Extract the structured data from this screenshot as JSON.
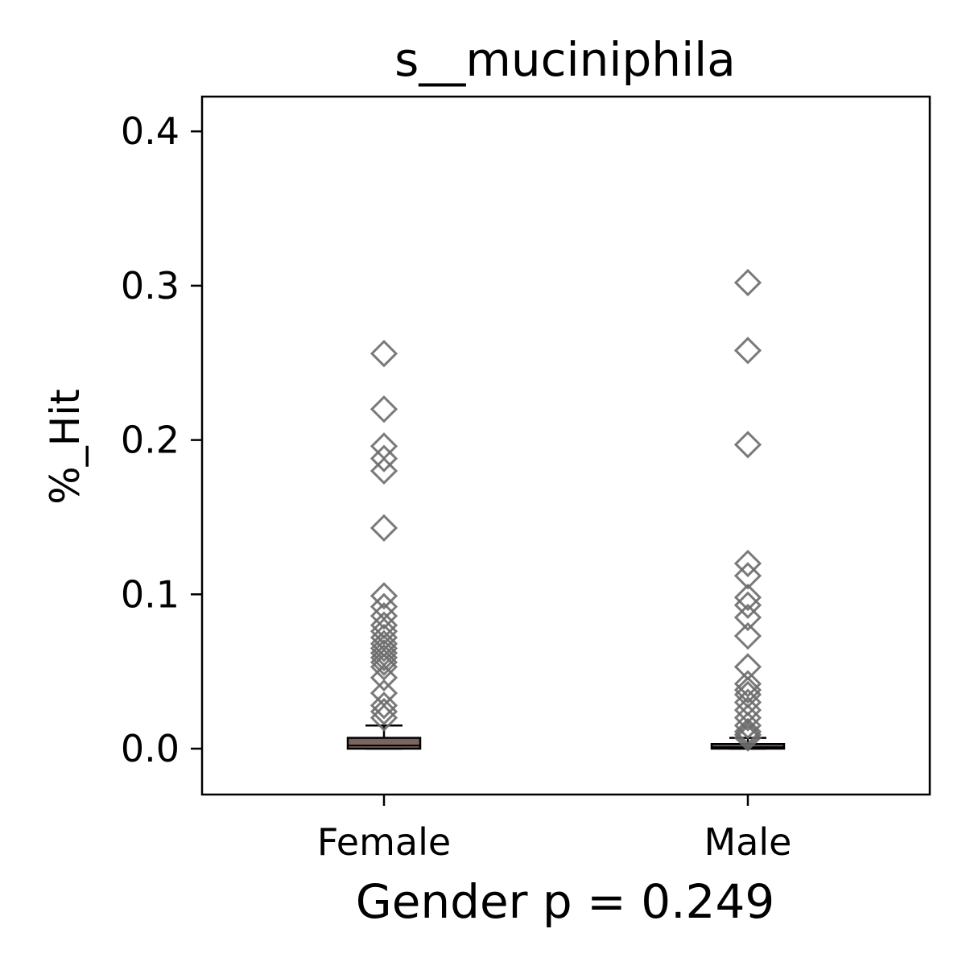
{
  "chart_data": {
    "type": "box",
    "title": "s__muciniphila",
    "xlabel": "Gender p = 0.249",
    "ylabel": "%_Hit",
    "categories": [
      "Female",
      "Male"
    ],
    "ylim": [
      -0.03,
      0.42
    ],
    "yticks": [
      "0.0",
      "0.1",
      "0.2",
      "0.3",
      "0.4"
    ],
    "grid": false,
    "legend": "none",
    "colors": {
      "box_fill": "#7a655f",
      "box_edge": "#000000",
      "outlier": "#6b6b6b"
    },
    "boxes": [
      {
        "category": "Female",
        "min": 0.0,
        "q1": 0.0,
        "median": 0.002,
        "q3": 0.007,
        "max": 0.015,
        "outliers": [
          0.256,
          0.22,
          0.196,
          0.188,
          0.18,
          0.143,
          0.099,
          0.092,
          0.086,
          0.08,
          0.076,
          0.072,
          0.068,
          0.065,
          0.062,
          0.059,
          0.056,
          0.053,
          0.046,
          0.036,
          0.028,
          0.024,
          0.02
        ]
      },
      {
        "category": "Male",
        "min": 0.0,
        "q1": 0.0,
        "median": 0.001,
        "q3": 0.003,
        "max": 0.007,
        "outliers": [
          0.302,
          0.258,
          0.197,
          0.12,
          0.112,
          0.098,
          0.093,
          0.085,
          0.073,
          0.053,
          0.042,
          0.038,
          0.035,
          0.03,
          0.025,
          0.02,
          0.015,
          0.011,
          0.009,
          0.007
        ]
      }
    ]
  }
}
